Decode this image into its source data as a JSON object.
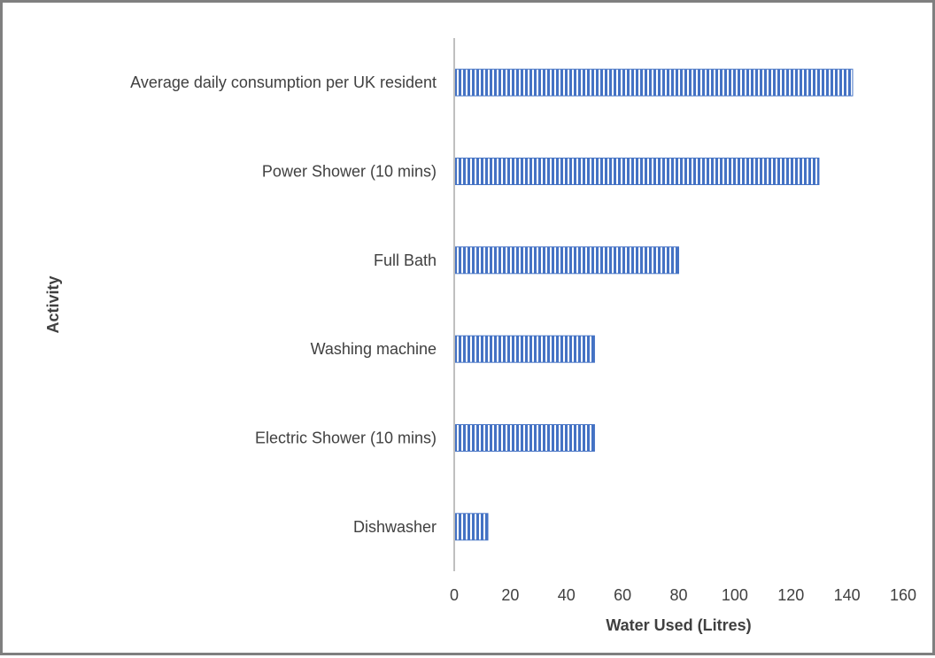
{
  "chart_data": {
    "type": "bar",
    "orientation": "horizontal",
    "title": "",
    "xlabel": "Water Used (Litres)",
    "ylabel": "Activity",
    "categories": [
      "Average daily consumption per UK resident",
      "Power Shower (10 mins)",
      "Full Bath",
      "Washing machine",
      "Electric Shower (10 mins)",
      "Dishwasher"
    ],
    "values": [
      142,
      130,
      80,
      50,
      50,
      12
    ],
    "xlim": [
      0,
      160
    ],
    "xticks": [
      "0",
      "20",
      "40",
      "60",
      "80",
      "100",
      "120",
      "140",
      "160"
    ],
    "grid": false,
    "legend": "none",
    "bar_color": "#4472c4",
    "bar_pattern": "vertical-stripes"
  }
}
